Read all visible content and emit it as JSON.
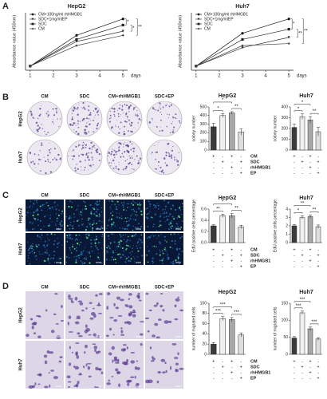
{
  "panel_labels": [
    "A",
    "B",
    "C",
    "D"
  ],
  "chart_data": [
    {
      "type": "line",
      "title": "HepG2",
      "ylabel": "Absorbance value (450nm)",
      "xlabel": "days",
      "x": [
        1,
        3,
        5
      ],
      "xlim": [
        0.8,
        5.2
      ],
      "xticks": [
        1,
        2,
        3,
        4,
        5
      ],
      "ylim": [
        0,
        1.4
      ],
      "legend": "upper left",
      "series": [
        {
          "name": "CM+100ng/ml rhHMGB1",
          "color": "#111111",
          "marker": "circle",
          "values": [
            0.1,
            0.85,
            1.25
          ]
        },
        {
          "name": "SDC+1mg/mlEP",
          "color": "#333333",
          "marker": "triangle",
          "values": [
            0.1,
            0.7,
            0.95
          ]
        },
        {
          "name": "SDC",
          "color": "#222222",
          "marker": "square",
          "values": [
            0.1,
            0.75,
            1.1
          ]
        },
        {
          "name": "CM",
          "color": "#444444",
          "marker": "diamond",
          "values": [
            0.1,
            0.6,
            0.85
          ]
        }
      ],
      "annotations": [
        "*",
        "*",
        "**"
      ]
    },
    {
      "type": "line",
      "title": "Huh7",
      "ylabel": "Absorbance value (450nm)",
      "xlabel": "days",
      "x": [
        1,
        3,
        5
      ],
      "xlim": [
        0.8,
        5.2
      ],
      "xticks": [
        1,
        2,
        3,
        4,
        5
      ],
      "ylim": [
        0,
        1.4
      ],
      "legend": "upper left",
      "series": [
        {
          "name": "CM+100ng/ml rhHMGB1",
          "color": "#111111",
          "marker": "circle",
          "values": [
            0.1,
            0.9,
            1.25
          ]
        },
        {
          "name": "SDC+1mg/mlEP",
          "color": "#333333",
          "marker": "triangle",
          "values": [
            0.1,
            0.55,
            0.8
          ]
        },
        {
          "name": "SDC",
          "color": "#222222",
          "marker": "square",
          "values": [
            0.1,
            0.75,
            1.0
          ]
        },
        {
          "name": "CM",
          "color": "#444444",
          "marker": "diamond",
          "values": [
            0.1,
            0.6,
            0.65
          ]
        }
      ],
      "annotations": [
        "*",
        "**",
        "**"
      ]
    },
    {
      "type": "bar",
      "title": "HepG2",
      "ylabel": "colony number",
      "ylim": [
        0,
        500
      ],
      "yticks": [
        0,
        100,
        200,
        300,
        400,
        500
      ],
      "values": [
        270,
        400,
        430,
        210
      ],
      "errors": [
        40,
        20,
        15,
        35
      ],
      "colors": [
        "#3b3b3b",
        "#f0f0f0",
        "#a8a8a8",
        "#dedede"
      ],
      "annotations": [
        "*",
        "*",
        "**"
      ]
    },
    {
      "type": "bar",
      "title": "Huh7",
      "ylabel": "colony number",
      "ylim": [
        0,
        400
      ],
      "yticks": [
        0,
        100,
        200,
        300,
        400
      ],
      "values": [
        210,
        310,
        280,
        170
      ],
      "errors": [
        30,
        25,
        30,
        40
      ],
      "colors": [
        "#3b3b3b",
        "#f0f0f0",
        "#a8a8a8",
        "#dedede"
      ],
      "annotations": [
        "*",
        "*",
        "**"
      ]
    },
    {
      "type": "bar",
      "title": "HepG2",
      "ylabel": "EdU positive cells percentage",
      "ylim": [
        0,
        0.6
      ],
      "yticks": [
        {
          "value": 0,
          "label": "0.0"
        },
        0.2,
        0.4,
        0.6
      ],
      "values": [
        0.3,
        0.48,
        0.48,
        0.28
      ],
      "errors": [
        0.02,
        0.03,
        0.04,
        0.03
      ],
      "colors": [
        "#3b3b3b",
        "#f0f0f0",
        "#a8a8a8",
        "#dedede"
      ],
      "annotations": [
        "**",
        "*",
        "**"
      ]
    },
    {
      "type": "bar",
      "title": "Huh7",
      "ylabel": "EdU positive cells percentage",
      "ylim": [
        0,
        4
      ],
      "yticks": [
        0,
        1,
        2,
        3,
        4
      ],
      "values": [
        2.0,
        3.0,
        3.1,
        1.9
      ],
      "errors": [
        0.15,
        0.2,
        0.2,
        0.2
      ],
      "colors": [
        "#3b3b3b",
        "#f0f0f0",
        "#a8a8a8",
        "#dedede"
      ],
      "annotations": [
        "*",
        "**",
        "**"
      ]
    },
    {
      "type": "bar",
      "title": "HepG2",
      "ylabel": "number of migrated cells",
      "ylim": [
        0,
        100
      ],
      "yticks": [
        0,
        20,
        40,
        60,
        80,
        100
      ],
      "values": [
        20,
        70,
        68,
        38
      ],
      "errors": [
        3,
        4,
        4,
        4
      ],
      "colors": [
        "#3b3b3b",
        "#f0f0f0",
        "#a8a8a8",
        "#dedede"
      ],
      "annotations": [
        "***",
        "***",
        "***"
      ]
    },
    {
      "type": "bar",
      "title": "Huh7",
      "ylabel": "number of migrated cells",
      "ylim": [
        0,
        150
      ],
      "yticks": [
        0,
        50,
        100,
        150
      ],
      "values": [
        48,
        122,
        75,
        45
      ],
      "errors": [
        4,
        5,
        5,
        4
      ],
      "colors": [
        "#3b3b3b",
        "#f0f0f0",
        "#a8a8a8",
        "#dedede"
      ],
      "annotations": [
        "***",
        "***",
        "***"
      ]
    }
  ],
  "image_panels": [
    {
      "style": "colony",
      "columns": [
        "CM",
        "SDC",
        "CM+rhHMGB1",
        "SDC+EP"
      ],
      "rows": [
        "HepG2",
        "Huh7"
      ]
    },
    {
      "style": "edu",
      "columns": [
        "CM",
        "SDC",
        "CM+rhHMGB1",
        "SDC+EP"
      ],
      "rows": [
        "HepG2",
        "Huh7"
      ]
    },
    {
      "style": "transwell",
      "columns": [
        "CM",
        "SDC",
        "CM+rhHMGB1",
        "SDC+EP"
      ],
      "rows": [
        "HepG2",
        "Huh7"
      ]
    }
  ],
  "treatment_tables": [
    [
      {
        "name": "CM",
        "signs": [
          "+",
          "-",
          "+",
          "-"
        ]
      },
      {
        "name": "SDC",
        "signs": [
          "-",
          "+",
          "-",
          "+"
        ]
      },
      {
        "name": "rhHMGB1",
        "signs": [
          "-",
          "-",
          "+",
          "-"
        ]
      },
      {
        "name": "EP",
        "signs": [
          "-",
          "-",
          "-",
          "+"
        ]
      }
    ],
    [
      {
        "name": "CM",
        "signs": [
          "+",
          "-",
          "+",
          "-"
        ]
      },
      {
        "name": "SDC",
        "signs": [
          "-",
          "+",
          "-",
          "+"
        ]
      },
      {
        "name": "rhHMGB1",
        "signs": [
          "-",
          "-",
          "+",
          "-"
        ]
      },
      {
        "name": "EP",
        "signs": [
          "-",
          "-",
          "-",
          "+"
        ]
      }
    ],
    [
      {
        "name": "CM",
        "signs": [
          "+",
          "-",
          "+",
          "-"
        ]
      },
      {
        "name": "SDC",
        "signs": [
          "-",
          "+",
          "-",
          "+"
        ]
      },
      {
        "name": "rhHMGB1",
        "signs": [
          "-",
          "-",
          "+",
          "-"
        ]
      },
      {
        "name": "EP",
        "signs": [
          "-",
          "-",
          "-",
          "+"
        ]
      }
    ]
  ]
}
